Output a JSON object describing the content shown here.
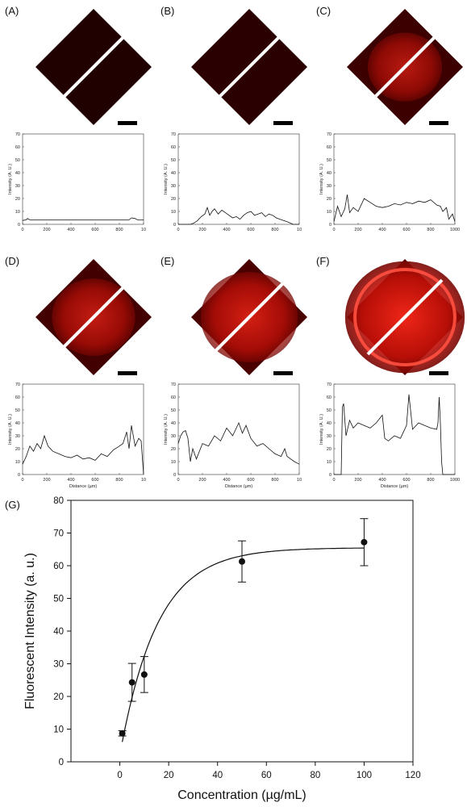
{
  "chart_data": [
    {
      "panel": "(A)",
      "type": "line",
      "ylabel": "Intensity (A. U.)",
      "xlabel": "",
      "xticks": [
        "0",
        "200",
        "400",
        "600",
        "800",
        "10"
      ],
      "yticks": [
        "0",
        "10",
        "20",
        "30",
        "40",
        "50",
        "60",
        "70"
      ],
      "xlim": [
        0,
        1000
      ],
      "ylim": [
        0,
        70
      ],
      "image_brightness": 0.05,
      "x": [
        0,
        30,
        40,
        60,
        100,
        200,
        300,
        400,
        500,
        600,
        700,
        800,
        880,
        900,
        930,
        950,
        1000
      ],
      "y": [
        3,
        3.5,
        4.5,
        3.5,
        3.5,
        3.5,
        3.5,
        3.5,
        3.5,
        3.5,
        3.5,
        3.5,
        3.5,
        5,
        4.5,
        3.5,
        3.5
      ]
    },
    {
      "panel": "(B)",
      "type": "line",
      "ylabel": "Intensity (A. U.)",
      "xlabel": "",
      "xticks": [
        "0",
        "200",
        "400",
        "600",
        "800",
        "10"
      ],
      "yticks": [
        "0",
        "10",
        "20",
        "30",
        "40",
        "50",
        "60",
        "70"
      ],
      "xlim": [
        0,
        1000
      ],
      "ylim": [
        0,
        70
      ],
      "image_brightness": 0.2,
      "x": [
        0,
        100,
        130,
        160,
        190,
        220,
        240,
        260,
        280,
        300,
        330,
        360,
        390,
        420,
        450,
        480,
        510,
        540,
        570,
        600,
        630,
        660,
        690,
        720,
        750,
        780,
        810,
        840,
        870,
        900,
        950,
        1000
      ],
      "y": [
        0,
        0,
        1,
        3,
        6,
        8,
        13,
        7,
        10,
        12,
        8,
        11,
        9,
        7,
        5,
        6,
        4,
        7,
        9,
        10,
        7,
        8,
        9,
        6,
        8,
        7,
        5,
        4,
        3,
        2,
        0,
        0
      ]
    },
    {
      "panel": "(C)",
      "type": "line",
      "ylabel": "Intensity (A. U.)",
      "xlabel": "",
      "xticks": [
        "0",
        "200",
        "400",
        "600",
        "800",
        "1000"
      ],
      "yticks": [
        "0",
        "10",
        "20",
        "30",
        "40",
        "50",
        "60",
        "70"
      ],
      "xlim": [
        0,
        1000
      ],
      "ylim": [
        0,
        70
      ],
      "image_brightness": 0.5,
      "x": [
        0,
        30,
        60,
        90,
        110,
        130,
        160,
        200,
        250,
        300,
        350,
        400,
        450,
        500,
        550,
        600,
        650,
        700,
        750,
        800,
        850,
        880,
        900,
        930,
        950,
        980,
        1000
      ],
      "y": [
        2,
        14,
        6,
        12,
        23,
        9,
        13,
        10,
        20,
        17,
        14,
        13,
        14,
        16,
        15,
        17,
        16,
        18,
        17,
        19,
        15,
        14,
        10,
        13,
        4,
        8,
        2
      ]
    },
    {
      "panel": "(D)",
      "type": "line",
      "ylabel": "Intensity (A. U.)",
      "xlabel": "Distance (µm)",
      "xticks": [
        "0",
        "200",
        "400",
        "600",
        "800",
        "10"
      ],
      "yticks": [
        "0",
        "10",
        "20",
        "30",
        "40",
        "50",
        "60",
        "70"
      ],
      "xlim": [
        0,
        1000
      ],
      "ylim": [
        0,
        70
      ],
      "image_brightness": 0.6,
      "x": [
        0,
        30,
        60,
        90,
        120,
        150,
        180,
        210,
        250,
        300,
        350,
        400,
        450,
        500,
        550,
        600,
        650,
        700,
        750,
        800,
        830,
        860,
        880,
        900,
        930,
        960,
        980,
        1000
      ],
      "y": [
        8,
        14,
        22,
        18,
        24,
        20,
        30,
        22,
        18,
        16,
        14,
        13,
        15,
        12,
        13,
        11,
        16,
        14,
        19,
        22,
        24,
        33,
        20,
        38,
        22,
        28,
        26,
        0
      ]
    },
    {
      "panel": "(E)",
      "type": "line",
      "ylabel": "Intensity (A. U.)",
      "xlabel": "Distance (µm)",
      "xticks": [
        "0",
        "200",
        "400",
        "600",
        "800",
        "10"
      ],
      "yticks": [
        "0",
        "10",
        "20",
        "30",
        "40",
        "50",
        "60",
        "70"
      ],
      "xlim": [
        0,
        1000
      ],
      "ylim": [
        0,
        70
      ],
      "image_brightness": 0.75,
      "x": [
        0,
        20,
        40,
        60,
        80,
        100,
        120,
        150,
        200,
        250,
        300,
        350,
        400,
        450,
        500,
        530,
        560,
        600,
        650,
        700,
        750,
        800,
        850,
        880,
        900,
        930,
        960,
        1000
      ],
      "y": [
        24,
        30,
        33,
        34,
        28,
        10,
        20,
        12,
        24,
        22,
        30,
        26,
        36,
        30,
        40,
        32,
        38,
        28,
        22,
        24,
        20,
        16,
        14,
        20,
        14,
        12,
        10,
        8
      ]
    },
    {
      "panel": "(F)",
      "type": "line",
      "ylabel": "Intensity (A. U.)",
      "xlabel": "Distance (µm)",
      "xticks": [
        "0",
        "200",
        "400",
        "600",
        "800",
        "1000"
      ],
      "yticks": [
        "0",
        "10",
        "20",
        "30",
        "40",
        "50",
        "60",
        "70"
      ],
      "xlim": [
        0,
        1000
      ],
      "ylim": [
        0,
        70
      ],
      "image_brightness": 1.0,
      "x": [
        0,
        60,
        70,
        80,
        100,
        130,
        160,
        200,
        250,
        300,
        350,
        400,
        420,
        450,
        500,
        550,
        600,
        620,
        650,
        700,
        750,
        800,
        850,
        860,
        870,
        880,
        890,
        900,
        1000
      ],
      "y": [
        0,
        0,
        52,
        55,
        30,
        42,
        36,
        40,
        38,
        36,
        40,
        46,
        28,
        26,
        30,
        28,
        38,
        62,
        35,
        40,
        38,
        36,
        35,
        40,
        60,
        40,
        10,
        0,
        0
      ]
    },
    {
      "panel": "(G)",
      "type": "scatter",
      "xlabel": "Concentration (µg/mL)",
      "ylabel": "Fluorescent Intensity (a. u.)",
      "xlim": [
        -20,
        120
      ],
      "ylim": [
        0,
        80
      ],
      "xticks": [
        "0",
        "20",
        "40",
        "60",
        "80",
        "100",
        "120"
      ],
      "yticks": [
        "0",
        "10",
        "20",
        "30",
        "40",
        "50",
        "60",
        "70",
        "80"
      ],
      "points": [
        {
          "x": 1,
          "y": 8.7,
          "err": 0.8
        },
        {
          "x": 5,
          "y": 24.3,
          "err": 5.8
        },
        {
          "x": 10,
          "y": 26.7,
          "err": 5.5
        },
        {
          "x": 50,
          "y": 61.3,
          "err": 6.3
        },
        {
          "x": 100,
          "y": 67.2,
          "err": 7.2
        }
      ],
      "fit": {
        "ymax": 65.5,
        "k": 0.065,
        "x0": -0.5,
        "xrange": [
          1,
          100
        ]
      }
    }
  ]
}
